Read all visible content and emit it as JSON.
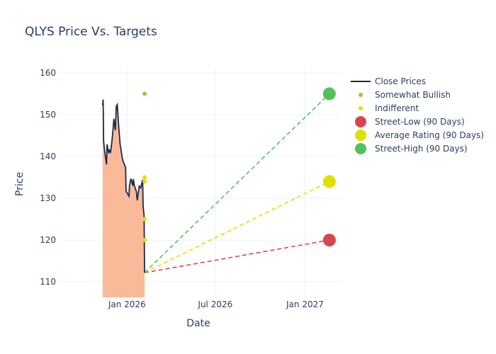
{
  "chart_data": {
    "type": "line",
    "title": "QLYS Price Vs. Targets",
    "xlabel": "Date",
    "ylabel": "Price",
    "xlim": [
      "2025-08-17",
      "2027-03-14"
    ],
    "ylim": [
      106.3,
      161
    ],
    "x_ticks": [
      {
        "date": "2026-01-01",
        "label": "Jan 2026"
      },
      {
        "date": "2026-07-01",
        "label": "Jul 2026"
      },
      {
        "date": "2027-01-01",
        "label": "Jan 2027"
      }
    ],
    "y_ticks": [
      110,
      120,
      130,
      140,
      150,
      160
    ],
    "grid": true,
    "legend_position": "right",
    "series": [
      {
        "name": "Close Prices",
        "color": "#1f2a44",
        "fill_color": "#f9b38f",
        "points": [
          [
            "2025-11-12",
            152.2
          ],
          [
            "2025-11-13",
            153.6
          ],
          [
            "2025-11-14",
            143.6
          ],
          [
            "2025-11-17",
            140.5
          ],
          [
            "2025-11-20",
            138.1
          ],
          [
            "2025-11-21",
            142.9
          ],
          [
            "2025-11-24",
            141.0
          ],
          [
            "2025-11-26",
            141.5
          ],
          [
            "2025-11-28",
            140.8
          ],
          [
            "2025-12-01",
            143.6
          ],
          [
            "2025-12-03",
            146.0
          ],
          [
            "2025-12-05",
            149.0
          ],
          [
            "2025-12-08",
            146.3
          ],
          [
            "2025-12-10",
            152.0
          ],
          [
            "2025-12-12",
            152.4
          ],
          [
            "2025-12-15",
            147.0
          ],
          [
            "2025-12-18",
            142.7
          ],
          [
            "2025-12-19",
            142.2
          ],
          [
            "2025-12-22",
            139.8
          ],
          [
            "2025-12-24",
            138.8
          ],
          [
            "2025-12-29",
            137.4
          ],
          [
            "2025-12-30",
            131.7
          ],
          [
            "2026-01-05",
            130.5
          ],
          [
            "2026-01-06",
            133.0
          ],
          [
            "2026-01-09",
            134.7
          ],
          [
            "2026-01-13",
            133.0
          ],
          [
            "2026-01-14",
            134.6
          ],
          [
            "2026-01-16",
            133.0
          ],
          [
            "2026-01-20",
            131.7
          ],
          [
            "2026-01-22",
            129.5
          ],
          [
            "2026-01-26",
            132.9
          ],
          [
            "2026-01-29",
            132.5
          ],
          [
            "2026-02-02",
            134.4
          ],
          [
            "2026-02-03",
            128.0
          ],
          [
            "2026-02-05",
            125.8
          ],
          [
            "2026-02-06",
            112.2
          ]
        ]
      },
      {
        "name": "Somewhat Bullish",
        "color": "#9acd32",
        "points": [
          [
            "2026-02-06",
            155
          ]
        ]
      },
      {
        "name": "Indifferent",
        "color": "#e0e000",
        "points": [
          [
            "2026-02-06",
            135
          ],
          [
            "2026-02-06",
            134
          ],
          [
            "2026-02-06",
            125
          ],
          [
            "2026-02-06",
            120
          ]
        ]
      },
      {
        "name": "Street-Low (90 Days)",
        "color": "#d9454f",
        "start": [
          "2026-02-06",
          112.2
        ],
        "target": [
          "2027-02-20",
          120
        ]
      },
      {
        "name": "Average Rating (90 Days)",
        "color": "#e0e000",
        "start": [
          "2026-02-06",
          112.2
        ],
        "target": [
          "2027-02-20",
          134
        ]
      },
      {
        "name": "Street-High (90 Days)",
        "color": "#4fc35a",
        "start": [
          "2026-02-06",
          112.2
        ],
        "target": [
          "2027-02-20",
          155
        ]
      }
    ]
  }
}
